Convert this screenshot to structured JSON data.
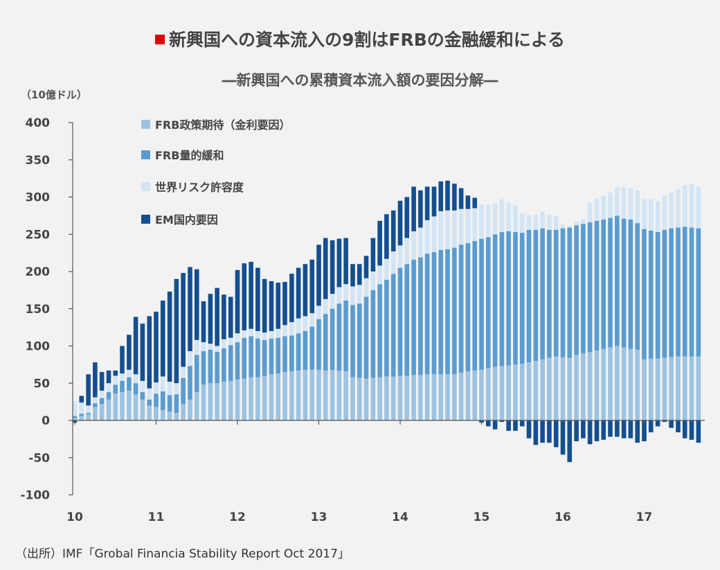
{
  "title": "新興国への資本流入の9割はFRBの金融緩和による",
  "subtitle": "―新興国への累積資本流入額の要因分解―",
  "unit": "（10億ドル）",
  "source": "（出所）IMF「Grobal Financia Stability Report Oct 2017」",
  "colors": {
    "policy": "#9dc3e1",
    "qe": "#5a9ccf",
    "risk": "#d3e5f4",
    "em": "#144f8f",
    "title_mark": "#e00000"
  },
  "chart_data": {
    "type": "bar",
    "stacked": true,
    "ylim": [
      -100,
      400
    ],
    "yticks": [
      400,
      350,
      300,
      250,
      200,
      150,
      100,
      50,
      0,
      -50,
      -100
    ],
    "xticks": [
      "10",
      "11",
      "12",
      "13",
      "14",
      "15",
      "16",
      "17"
    ],
    "xlim": [
      10,
      17.75
    ],
    "legend": [
      "FRB政策期待（金利要因）",
      "FRB量的緩和",
      "世界リスク許容度",
      "EM国内要因"
    ],
    "legend_position": "top-left",
    "x": [
      10.0,
      10.083,
      10.167,
      10.25,
      10.333,
      10.417,
      10.5,
      10.583,
      10.667,
      10.75,
      10.833,
      10.917,
      11.0,
      11.083,
      11.167,
      11.25,
      11.333,
      11.417,
      11.5,
      11.583,
      11.667,
      11.75,
      11.833,
      11.917,
      12.0,
      12.083,
      12.167,
      12.25,
      12.333,
      12.417,
      12.5,
      12.583,
      12.667,
      12.75,
      12.833,
      12.917,
      13.0,
      13.083,
      13.167,
      13.25,
      13.333,
      13.417,
      13.5,
      13.583,
      13.667,
      13.75,
      13.833,
      13.917,
      14.0,
      14.083,
      14.167,
      14.25,
      14.333,
      14.417,
      14.5,
      14.583,
      14.667,
      14.75,
      14.833,
      14.917,
      15.0,
      15.083,
      15.167,
      15.25,
      15.333,
      15.417,
      15.5,
      15.583,
      15.667,
      15.75,
      15.833,
      15.917,
      16.0,
      16.083,
      16.167,
      16.25,
      16.333,
      16.417,
      16.5,
      16.583,
      16.667,
      16.75,
      16.833,
      16.917,
      17.0,
      17.083,
      17.167,
      17.25,
      17.333,
      17.417,
      17.5,
      17.583,
      17.667
    ],
    "series": [
      {
        "name": "FRB政策期待（金利要因）",
        "values": [
          3,
          6,
          8,
          18,
          22,
          28,
          36,
          38,
          40,
          35,
          28,
          20,
          18,
          14,
          12,
          10,
          22,
          28,
          38,
          48,
          50,
          50,
          52,
          53,
          55,
          56,
          58,
          58,
          60,
          62,
          63,
          65,
          66,
          67,
          68,
          68,
          68,
          67,
          68,
          67,
          66,
          58,
          57,
          56,
          57,
          58,
          59,
          59,
          60,
          60,
          61,
          61,
          62,
          62,
          62,
          62,
          62,
          64,
          66,
          67,
          68,
          70,
          72,
          73,
          74,
          75,
          76,
          78,
          80,
          82,
          84,
          86,
          85,
          84,
          88,
          90,
          92,
          94,
          96,
          98,
          100,
          98,
          96,
          95,
          82,
          83,
          83,
          84,
          85,
          86,
          86,
          86,
          86
        ]
      },
      {
        "name": "FRB量的緩和",
        "values": [
          3,
          3,
          2,
          5,
          8,
          10,
          12,
          15,
          18,
          15,
          10,
          8,
          18,
          25,
          22,
          25,
          35,
          45,
          50,
          45,
          45,
          42,
          45,
          48,
          50,
          55,
          55,
          52,
          48,
          48,
          48,
          48,
          48,
          50,
          52,
          58,
          68,
          76,
          82,
          90,
          95,
          97,
          100,
          110,
          118,
          125,
          130,
          138,
          145,
          150,
          155,
          158,
          162,
          164,
          167,
          168,
          170,
          172,
          172,
          174,
          176,
          176,
          178,
          180,
          180,
          178,
          176,
          178,
          176,
          176,
          172,
          170,
          173,
          175,
          174,
          174,
          174,
          174,
          174,
          174,
          175,
          173,
          174,
          170,
          175,
          172,
          170,
          172,
          173,
          173,
          174,
          173,
          172
        ]
      },
      {
        "name": "世界リスク許容度",
        "values": [
          20,
          15,
          10,
          8,
          10,
          12,
          12,
          10,
          10,
          12,
          15,
          15,
          15,
          20,
          18,
          15,
          15,
          20,
          20,
          12,
          8,
          8,
          12,
          10,
          12,
          10,
          10,
          10,
          10,
          10,
          12,
          15,
          18,
          20,
          20,
          18,
          18,
          20,
          20,
          22,
          22,
          25,
          25,
          25,
          25,
          25,
          28,
          30,
          30,
          35,
          38,
          40,
          45,
          48,
          52,
          52,
          50,
          48,
          46,
          44,
          46,
          44,
          42,
          44,
          38,
          36,
          26,
          20,
          20,
          22,
          20,
          18,
          5,
          2,
          5,
          6,
          26,
          30,
          32,
          34,
          38,
          42,
          42,
          44,
          40,
          42,
          42,
          46,
          48,
          52,
          56,
          58,
          56
        ]
      },
      {
        "name": "EM国内要因",
        "values": [
          -3,
          9,
          42,
          47,
          25,
          17,
          7,
          37,
          47,
          77,
          77,
          97,
          95,
          102,
          121,
          140,
          126,
          113,
          95,
          55,
          67,
          78,
          60,
          55,
          85,
          90,
          90,
          85,
          72,
          67,
          62,
          58,
          65,
          68,
          70,
          72,
          82,
          82,
          72,
          65,
          62,
          30,
          28,
          30,
          45,
          60,
          60,
          55,
          60,
          55,
          60,
          50,
          45,
          40,
          40,
          40,
          36,
          28,
          18,
          14,
          -3,
          -8,
          -12,
          -2,
          -14,
          -14,
          -8,
          -24,
          -33,
          -30,
          -30,
          -36,
          -46,
          -56,
          -28,
          -24,
          -32,
          -28,
          -26,
          -22,
          -22,
          -24,
          -24,
          -30,
          -28,
          -16,
          -8,
          -2,
          -10,
          -16,
          -24,
          -26,
          -30
        ]
      }
    ]
  }
}
